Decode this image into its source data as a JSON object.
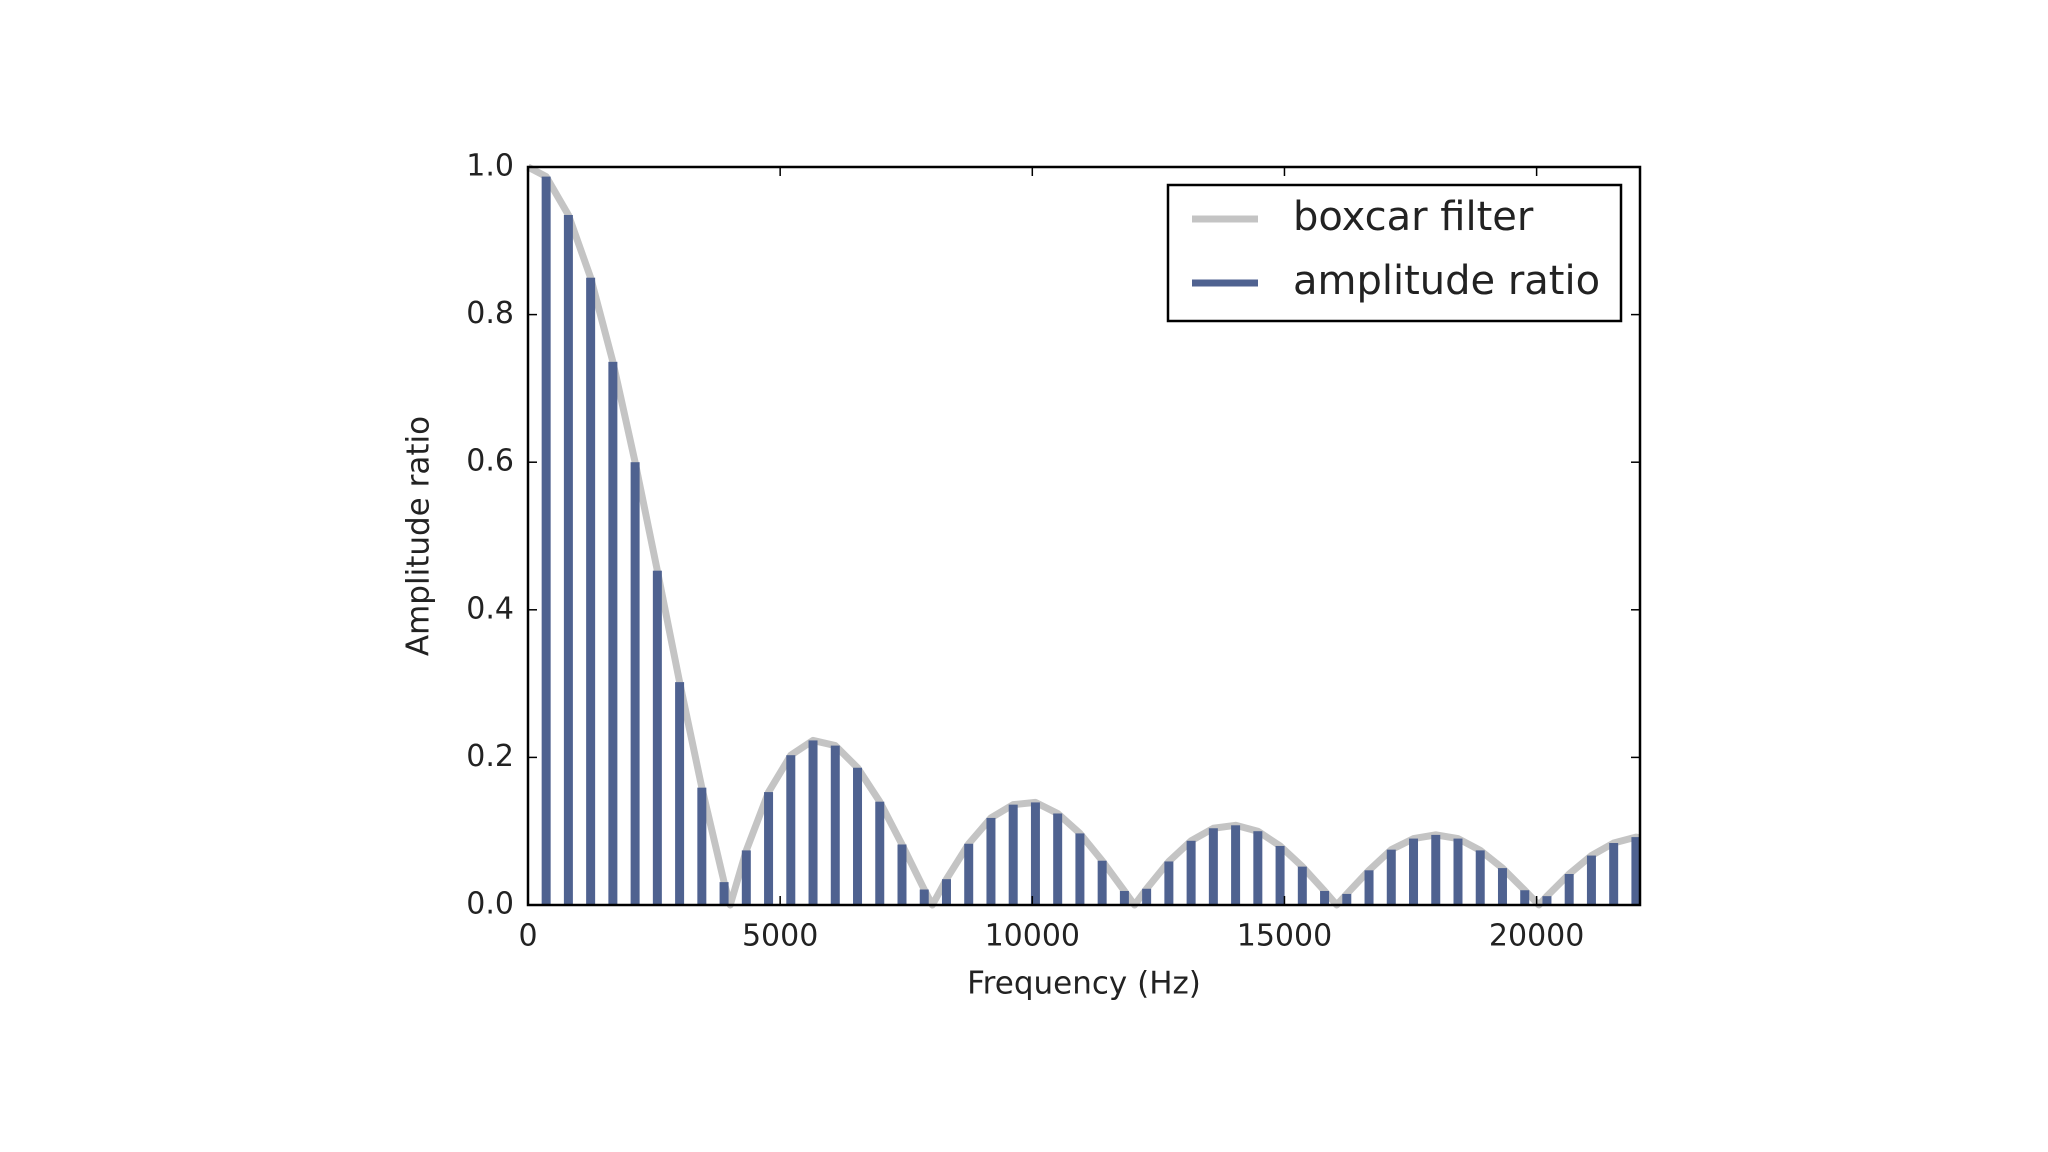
{
  "chart_data": {
    "type": "bar",
    "xlabel": "Frequency (Hz)",
    "ylabel": "Amplitude ratio",
    "xlim": [
      0,
      22050
    ],
    "ylim": [
      0,
      1
    ],
    "xticks": [
      0,
      5000,
      10000,
      15000,
      20000
    ],
    "yticks": [
      {
        "value": 0,
        "label": "0.0"
      },
      0.2,
      0.4,
      0.6,
      0.8,
      {
        "value": 1,
        "label": "1.0"
      }
    ],
    "legend": "upper right",
    "series": [
      {
        "name": "boxcar filter",
        "type": "line",
        "color": "#c4c4c4",
        "x": [
          0,
          360,
          801,
          1242,
          1683,
          2124,
          2565,
          3006,
          3447,
          3888,
          4009,
          4329,
          4770,
          5211,
          5652,
          6093,
          6534,
          6975,
          7416,
          7857,
          8018,
          8298,
          8739,
          9180,
          9621,
          10062,
          10503,
          10944,
          11385,
          11826,
          12027,
          12267,
          12708,
          13149,
          13590,
          14031,
          14472,
          14913,
          15354,
          15795,
          16036,
          16236,
          16677,
          17118,
          17559,
          18000,
          18441,
          18882,
          19323,
          19764,
          20045,
          20205,
          20646,
          21087,
          21528,
          21969,
          22050
        ],
        "values": [
          1,
          0.987,
          0.935,
          0.85,
          0.736,
          0.6,
          0.453,
          0.302,
          0.159,
          0.031,
          0,
          0.074,
          0.153,
          0.203,
          0.223,
          0.216,
          0.186,
          0.14,
          0.082,
          0.021,
          0,
          0.035,
          0.083,
          0.118,
          0.136,
          0.139,
          0.124,
          0.097,
          0.06,
          0.019,
          0,
          0.022,
          0.059,
          0.087,
          0.104,
          0.108,
          0.1,
          0.08,
          0.052,
          0.019,
          0,
          0.015,
          0.047,
          0.075,
          0.09,
          0.095,
          0.09,
          0.074,
          0.05,
          0.02,
          0,
          0.012,
          0.042,
          0.067,
          0.084,
          0.092,
          0.091
        ]
      },
      {
        "name": "amplitude ratio",
        "type": "bar",
        "color": "#4f6290",
        "x": [
          360,
          801,
          1242,
          1683,
          2124,
          2565,
          3006,
          3447,
          3888,
          4329,
          4770,
          5211,
          5652,
          6093,
          6534,
          6975,
          7416,
          7857,
          8298,
          8739,
          9180,
          9621,
          10062,
          10503,
          10944,
          11385,
          11826,
          12267,
          12708,
          13149,
          13590,
          14031,
          14472,
          14913,
          15354,
          15795,
          16236,
          16677,
          17118,
          17559,
          18000,
          18441,
          18882,
          19323,
          19764,
          20205,
          20646,
          21087,
          21528,
          21969
        ],
        "values": [
          0.987,
          0.935,
          0.85,
          0.736,
          0.6,
          0.453,
          0.302,
          0.159,
          0.031,
          0.074,
          0.153,
          0.203,
          0.223,
          0.216,
          0.186,
          0.14,
          0.082,
          0.021,
          0.035,
          0.083,
          0.118,
          0.136,
          0.139,
          0.124,
          0.097,
          0.06,
          0.019,
          0.022,
          0.059,
          0.087,
          0.104,
          0.108,
          0.1,
          0.08,
          0.052,
          0.019,
          0.015,
          0.047,
          0.075,
          0.09,
          0.095,
          0.09,
          0.074,
          0.05,
          0.02,
          0.012,
          0.042,
          0.067,
          0.084,
          0.092
        ]
      }
    ]
  }
}
